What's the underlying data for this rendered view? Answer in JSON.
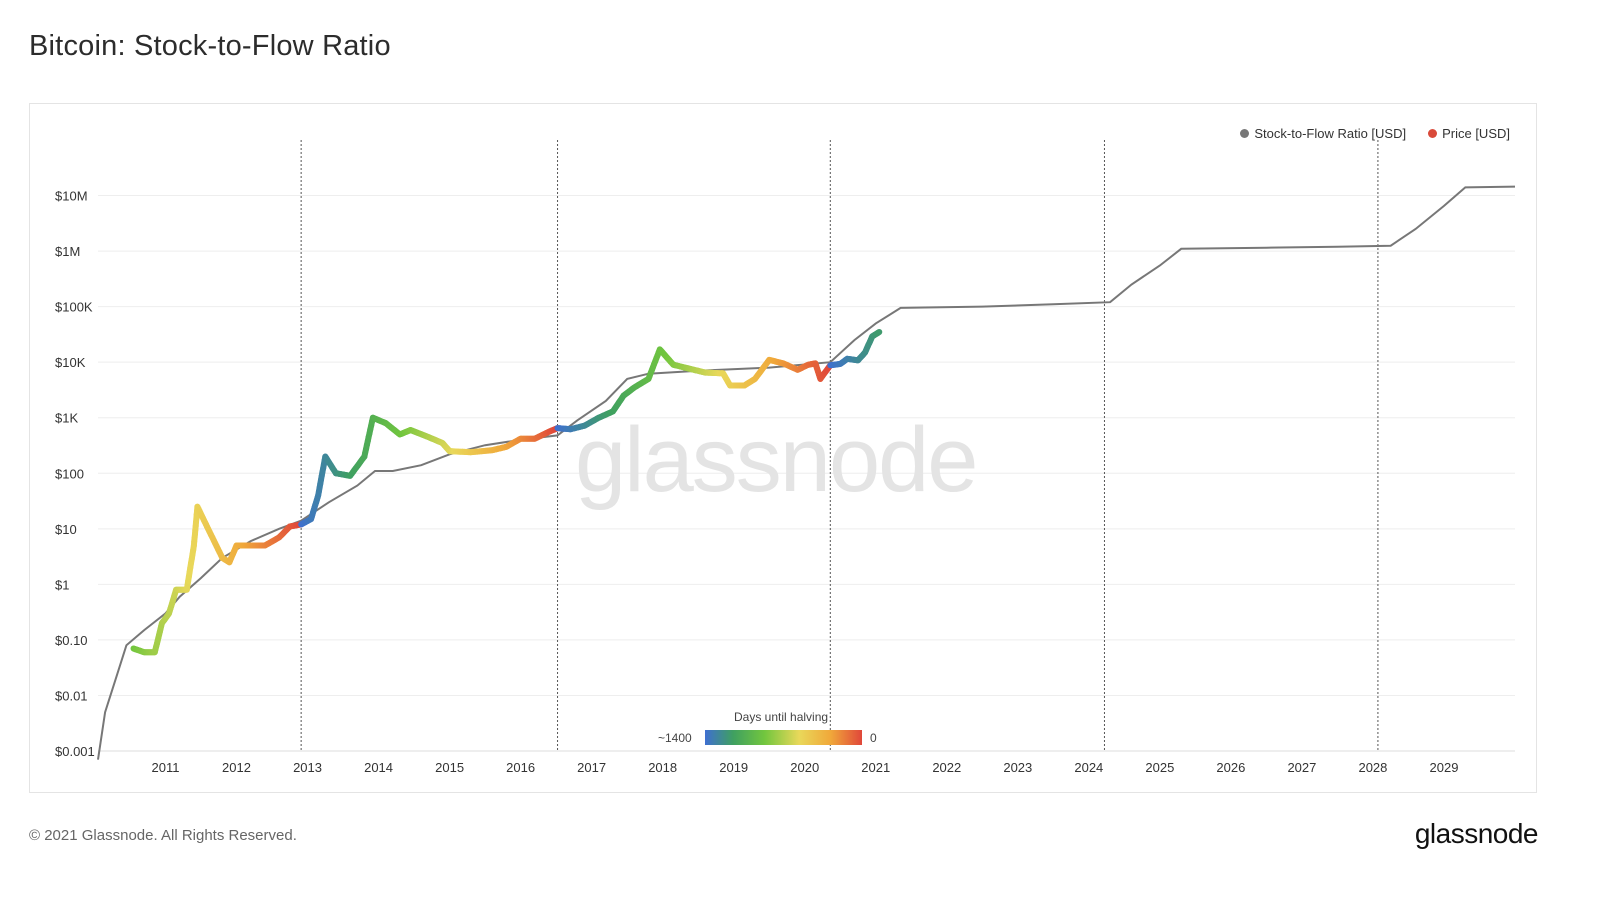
{
  "page": {
    "title": "Bitcoin: Stock-to-Flow Ratio",
    "copyright": "© 2021 Glassnode. All Rights Reserved.",
    "brand": "glassnode",
    "watermark": "glassnode"
  },
  "colors": {
    "model_line": "#777777",
    "price_dot": "#d94a3a",
    "gradient": [
      "#3f6fd1",
      "#3fa060",
      "#72c63e",
      "#e9d85a",
      "#f0a83a",
      "#e0473a"
    ]
  },
  "legend": {
    "items": [
      {
        "label": "Stock-to-Flow Ratio [USD]",
        "color": "#777777"
      },
      {
        "label": "Price [USD]",
        "color": "#d94a3a"
      }
    ]
  },
  "colorbar": {
    "title": "Days until halving",
    "min_label": "~1400",
    "max_label": "0"
  },
  "chart_data": {
    "type": "line",
    "title": "Bitcoin: Stock-to-Flow Ratio",
    "yscale": "log",
    "ylim": [
      0.001,
      100000000
    ],
    "xlim": [
      2010.05,
      2030.0
    ],
    "y_ticks": [
      {
        "value": 0.001,
        "label": "$0.001"
      },
      {
        "value": 0.01,
        "label": "$0.01"
      },
      {
        "value": 0.1,
        "label": "$0.10"
      },
      {
        "value": 1,
        "label": "$1"
      },
      {
        "value": 10,
        "label": "$10"
      },
      {
        "value": 100,
        "label": "$100"
      },
      {
        "value": 1000,
        "label": "$1K"
      },
      {
        "value": 10000,
        "label": "$10K"
      },
      {
        "value": 100000,
        "label": "$100K"
      },
      {
        "value": 1000000,
        "label": "$1M"
      },
      {
        "value": 10000000,
        "label": "$10M"
      }
    ],
    "x_ticks": [
      {
        "value": 2011,
        "label": "2011"
      },
      {
        "value": 2012,
        "label": "2012"
      },
      {
        "value": 2013,
        "label": "2013"
      },
      {
        "value": 2014,
        "label": "2014"
      },
      {
        "value": 2015,
        "label": "2015"
      },
      {
        "value": 2016,
        "label": "2016"
      },
      {
        "value": 2017,
        "label": "2017"
      },
      {
        "value": 2018,
        "label": "2018"
      },
      {
        "value": 2019,
        "label": "2019"
      },
      {
        "value": 2020,
        "label": "2020"
      },
      {
        "value": 2021,
        "label": "2021"
      },
      {
        "value": 2022,
        "label": "2022"
      },
      {
        "value": 2023,
        "label": "2023"
      },
      {
        "value": 2024,
        "label": "2024"
      },
      {
        "value": 2025,
        "label": "2025"
      },
      {
        "value": 2026,
        "label": "2026"
      },
      {
        "value": 2027,
        "label": "2027"
      },
      {
        "value": 2028,
        "label": "2028"
      },
      {
        "value": 2029,
        "label": "2029"
      }
    ],
    "halvings": [
      2012.91,
      2016.52,
      2020.36,
      2024.22,
      2028.07
    ],
    "grid": true,
    "legend_position": "top-right",
    "series": [
      {
        "name": "Stock-to-Flow Ratio [USD]",
        "color": "#777777",
        "points": [
          [
            2010.05,
            0.0007
          ],
          [
            2010.15,
            0.005
          ],
          [
            2010.3,
            0.02
          ],
          [
            2010.45,
            0.08
          ],
          [
            2010.7,
            0.15
          ],
          [
            2011.0,
            0.3
          ],
          [
            2011.2,
            0.6
          ],
          [
            2011.5,
            1.3
          ],
          [
            2011.8,
            3
          ],
          [
            2012.2,
            6
          ],
          [
            2012.6,
            10
          ],
          [
            2012.91,
            14
          ],
          [
            2013.3,
            30
          ],
          [
            2013.7,
            60
          ],
          [
            2013.95,
            110
          ],
          [
            2014.2,
            110
          ],
          [
            2014.6,
            140
          ],
          [
            2015.0,
            220
          ],
          [
            2015.5,
            320
          ],
          [
            2016.0,
            400
          ],
          [
            2016.52,
            480
          ],
          [
            2016.8,
            900
          ],
          [
            2017.2,
            2000
          ],
          [
            2017.5,
            5000
          ],
          [
            2017.8,
            6200
          ],
          [
            2018.5,
            7000
          ],
          [
            2019.5,
            8000
          ],
          [
            2020.36,
            10000
          ],
          [
            2020.7,
            25000
          ],
          [
            2021.0,
            50000
          ],
          [
            2021.35,
            95000
          ],
          [
            2022.5,
            100000
          ],
          [
            2023.5,
            110000
          ],
          [
            2024.3,
            120000
          ],
          [
            2024.6,
            250000
          ],
          [
            2025.0,
            550000
          ],
          [
            2025.3,
            1100000
          ],
          [
            2026.5,
            1150000
          ],
          [
            2027.5,
            1200000
          ],
          [
            2028.25,
            1250000
          ],
          [
            2028.6,
            2500000
          ],
          [
            2029.0,
            6500000
          ],
          [
            2029.3,
            14000000
          ],
          [
            2030.0,
            14500000
          ]
        ]
      },
      {
        "name": "Price [USD]",
        "color": "#d94a3a",
        "points": [
          [
            2010.55,
            0.07
          ],
          [
            2010.7,
            0.06
          ],
          [
            2010.85,
            0.06
          ],
          [
            2010.95,
            0.2
          ],
          [
            2011.05,
            0.3
          ],
          [
            2011.15,
            0.8
          ],
          [
            2011.3,
            0.8
          ],
          [
            2011.4,
            5
          ],
          [
            2011.45,
            25
          ],
          [
            2011.6,
            10
          ],
          [
            2011.8,
            3
          ],
          [
            2011.9,
            2.5
          ],
          [
            2012.0,
            5
          ],
          [
            2012.2,
            5
          ],
          [
            2012.4,
            5
          ],
          [
            2012.6,
            7
          ],
          [
            2012.75,
            11
          ],
          [
            2012.91,
            12
          ],
          [
            2013.05,
            15
          ],
          [
            2013.15,
            40
          ],
          [
            2013.25,
            200
          ],
          [
            2013.4,
            100
          ],
          [
            2013.6,
            90
          ],
          [
            2013.8,
            200
          ],
          [
            2013.92,
            1000
          ],
          [
            2014.1,
            800
          ],
          [
            2014.3,
            500
          ],
          [
            2014.45,
            600
          ],
          [
            2014.7,
            450
          ],
          [
            2014.9,
            350
          ],
          [
            2015.0,
            250
          ],
          [
            2015.3,
            240
          ],
          [
            2015.6,
            260
          ],
          [
            2015.8,
            300
          ],
          [
            2016.0,
            420
          ],
          [
            2016.2,
            420
          ],
          [
            2016.4,
            560
          ],
          [
            2016.52,
            650
          ],
          [
            2016.7,
            620
          ],
          [
            2016.9,
            720
          ],
          [
            2017.1,
            1000
          ],
          [
            2017.3,
            1300
          ],
          [
            2017.45,
            2500
          ],
          [
            2017.6,
            3500
          ],
          [
            2017.8,
            5000
          ],
          [
            2017.96,
            17000
          ],
          [
            2018.15,
            9000
          ],
          [
            2018.4,
            7500
          ],
          [
            2018.6,
            6500
          ],
          [
            2018.85,
            6300
          ],
          [
            2018.95,
            3800
          ],
          [
            2019.15,
            3800
          ],
          [
            2019.3,
            5000
          ],
          [
            2019.5,
            11000
          ],
          [
            2019.7,
            9500
          ],
          [
            2019.9,
            7300
          ],
          [
            2020.05,
            9000
          ],
          [
            2020.15,
            9500
          ],
          [
            2020.22,
            5000
          ],
          [
            2020.36,
            8800
          ],
          [
            2020.5,
            9300
          ],
          [
            2020.6,
            11500
          ],
          [
            2020.75,
            10800
          ],
          [
            2020.85,
            15000
          ],
          [
            2020.95,
            29000
          ],
          [
            2021.05,
            35000
          ]
        ]
      }
    ]
  }
}
